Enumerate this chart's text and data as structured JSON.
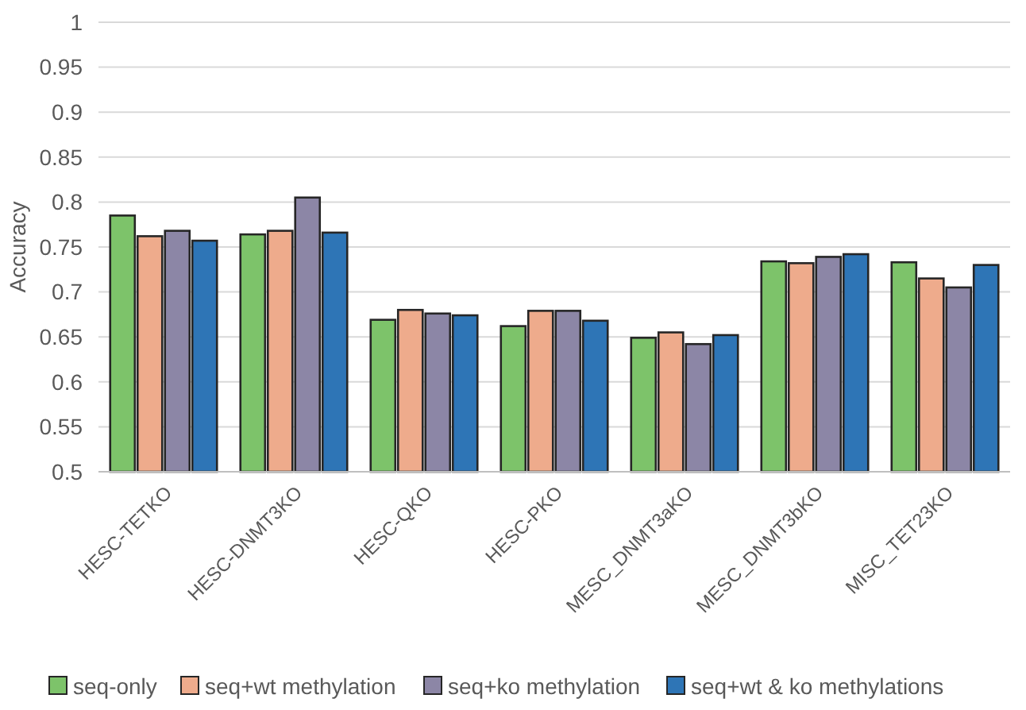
{
  "chart_data": {
    "type": "bar",
    "ylabel": "Accuracy",
    "categories": [
      "HESC-TETKO",
      "HESC-DNMT3KO",
      "HESC-QKO",
      "HESC-PKO",
      "MESC_DNMT3aKO",
      "MESC_DNMT3bKO",
      "MISC_TET23KO"
    ],
    "series": [
      {
        "name": "seq-only",
        "color": "#7dc36a",
        "values": [
          0.785,
          0.764,
          0.669,
          0.662,
          0.649,
          0.734,
          0.733
        ]
      },
      {
        "name": "seq+wt methylation",
        "color": "#eeab8c",
        "values": [
          0.762,
          0.768,
          0.68,
          0.679,
          0.655,
          0.732,
          0.715
        ]
      },
      {
        "name": "seq+ko methylation",
        "color": "#8c86a6",
        "values": [
          0.768,
          0.805,
          0.676,
          0.679,
          0.642,
          0.739,
          0.705
        ]
      },
      {
        "name": "seq+wt & ko methylations",
        "color": "#2e75b6",
        "values": [
          0.757,
          0.766,
          0.674,
          0.668,
          0.652,
          0.742,
          0.73
        ]
      }
    ],
    "ylim": [
      0.5,
      1
    ],
    "yticks": [
      0.5,
      0.55,
      0.6,
      0.65,
      0.7,
      0.75,
      0.8,
      0.85,
      0.9,
      0.95,
      1
    ],
    "grid": "y",
    "legend": "bottom"
  }
}
